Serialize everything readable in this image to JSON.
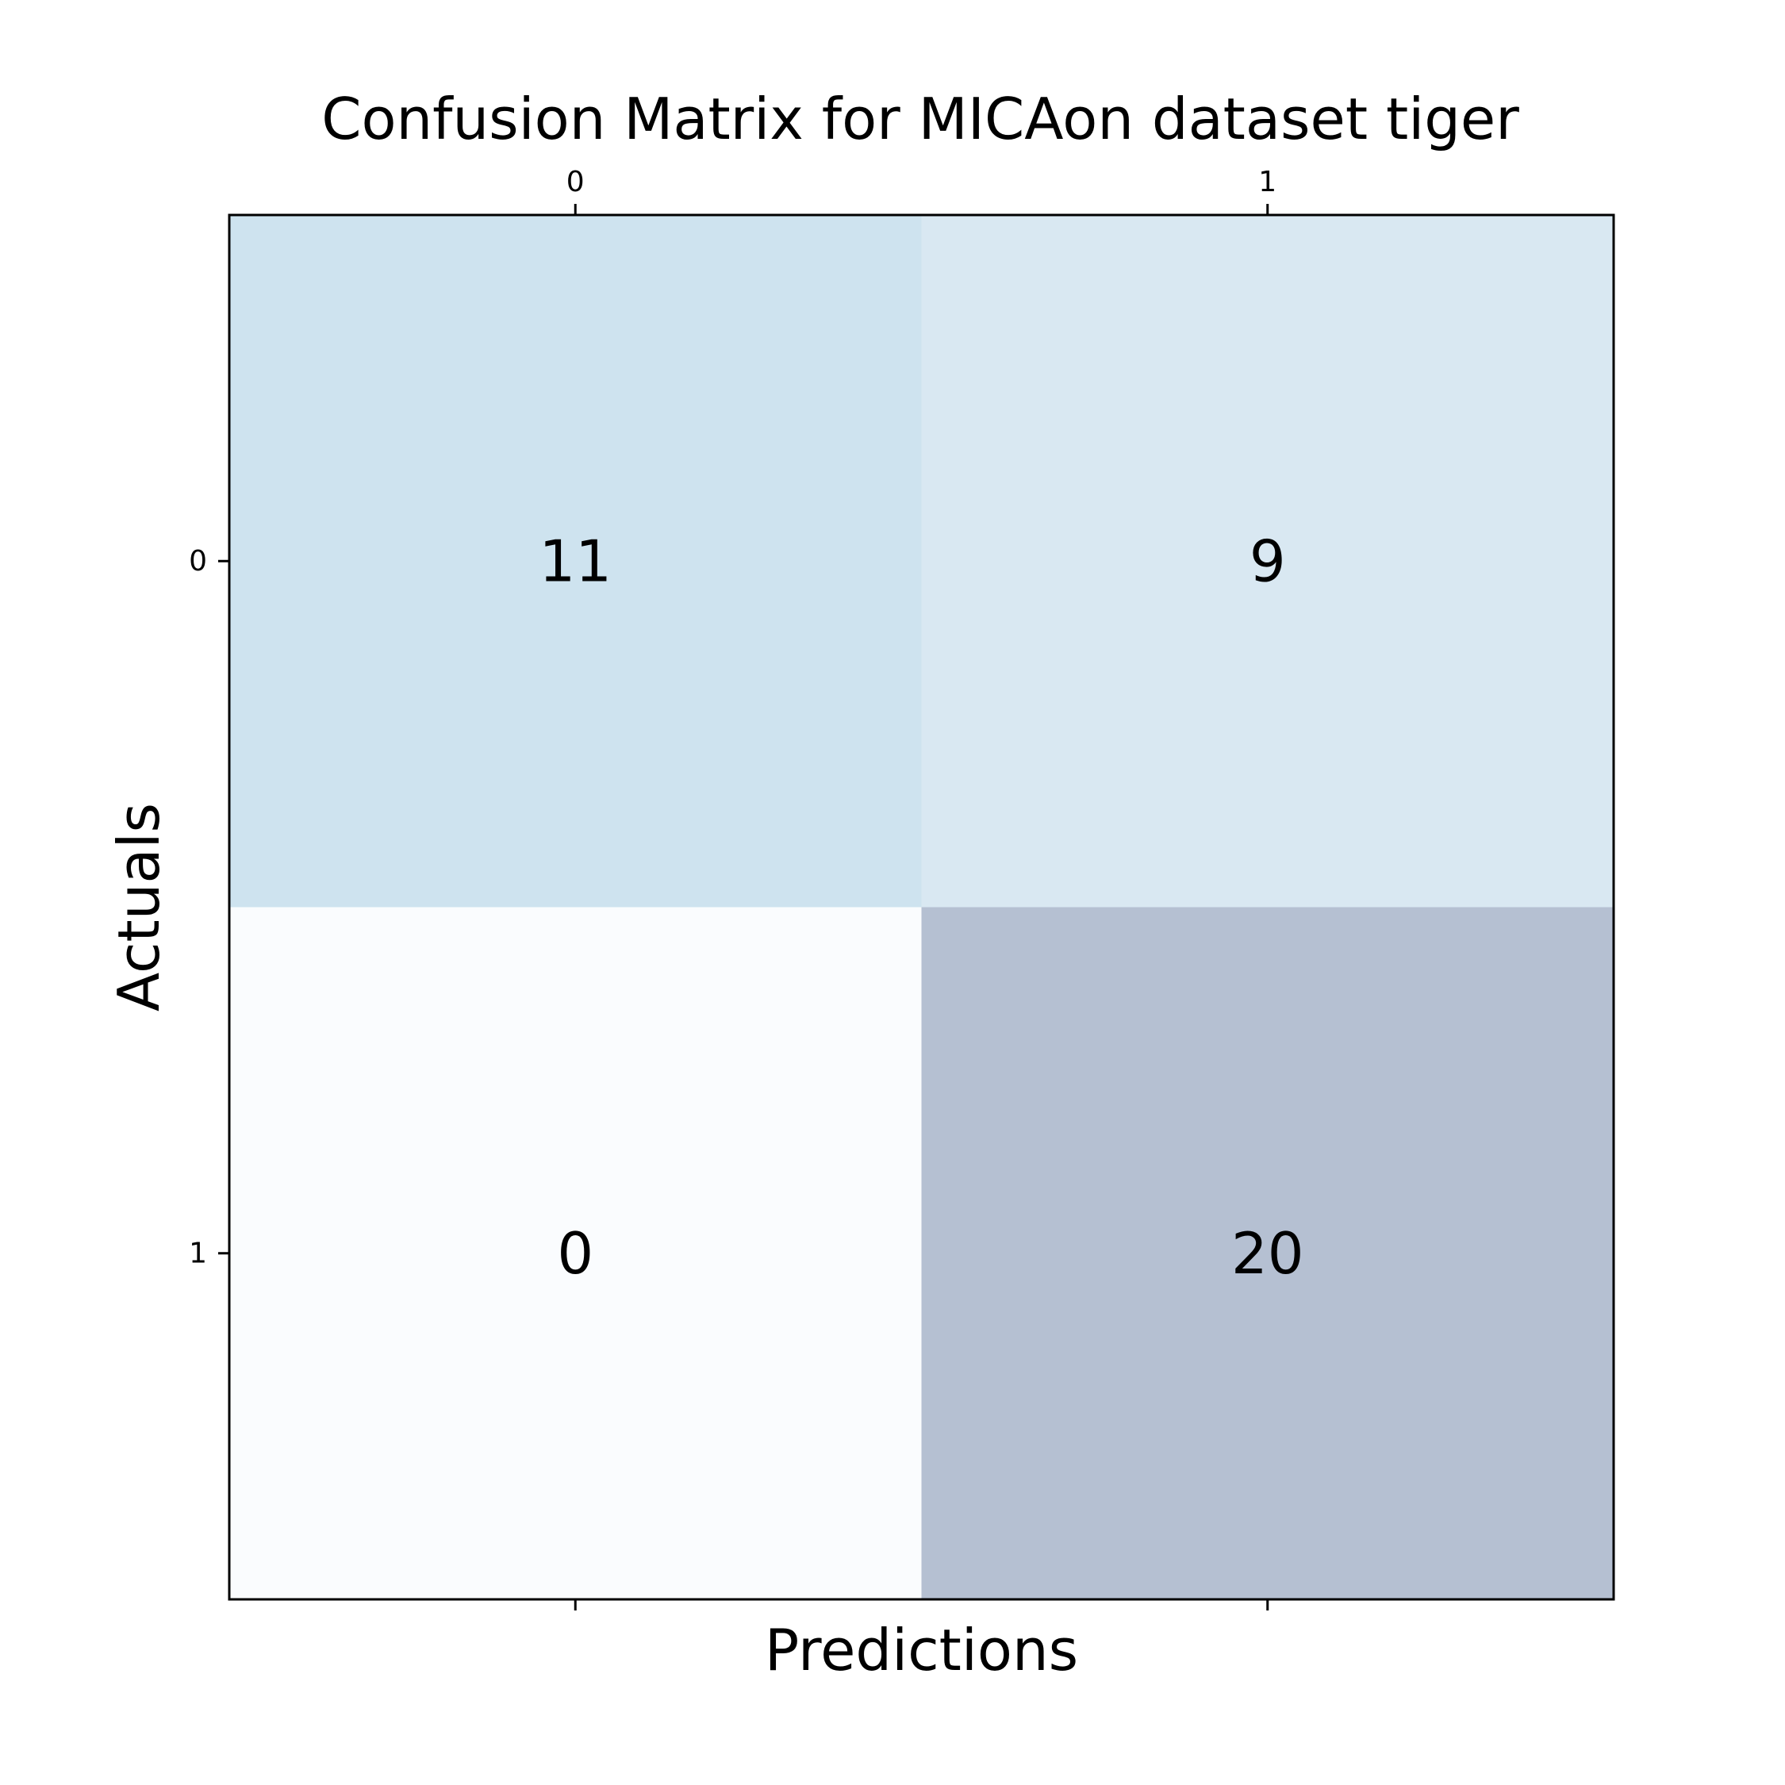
{
  "chart_data": {
    "type": "heatmap",
    "title": "Confusion Matrix for MICAon dataset tiger",
    "xlabel": "Predictions",
    "ylabel": "Actuals",
    "x_categories": [
      "0",
      "1"
    ],
    "y_categories": [
      "0",
      "1"
    ],
    "x_axis_position": "top",
    "grid": false,
    "legend": "none",
    "values": [
      [
        11,
        9
      ],
      [
        0,
        20
      ]
    ],
    "colormap": "Blues",
    "cell_colors": [
      [
        "#cee3ef",
        "#d9e8f2"
      ],
      [
        "#fafcfe",
        "#b5c0d2"
      ]
    ]
  }
}
